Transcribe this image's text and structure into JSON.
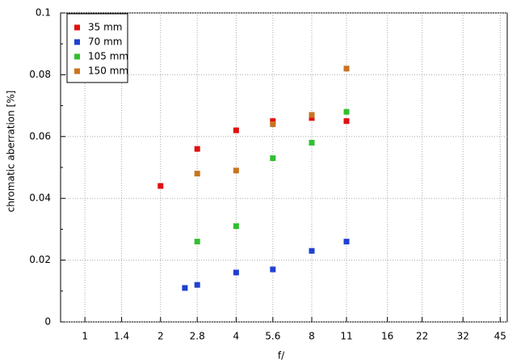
{
  "chart_data": {
    "type": "scatter",
    "x_label": "f/",
    "y_label": "chromatic aberration [%]",
    "xscale": "log",
    "grid": true,
    "legend": "upper left",
    "xlim": [
      0.8,
      48
    ],
    "ylim": [
      0,
      0.1
    ],
    "xticks": [
      1,
      1.4,
      2,
      2.8,
      4,
      5.6,
      8,
      11,
      16,
      22,
      32,
      45
    ],
    "yticks": [
      0,
      0.02,
      0.04,
      0.06,
      0.08,
      0.1
    ],
    "series": [
      {
        "name": "35 mm",
        "color": "#e01010",
        "x": [
          2,
          2.8,
          4,
          5.6,
          8,
          11
        ],
        "values": [
          0.044,
          0.056,
          0.062,
          0.065,
          0.066,
          0.065
        ]
      },
      {
        "name": "70 mm",
        "color": "#2040d0",
        "x": [
          2.5,
          2.8,
          4,
          5.6,
          8,
          11
        ],
        "values": [
          0.011,
          0.012,
          0.016,
          0.017,
          0.023,
          0.026
        ]
      },
      {
        "name": "105 mm",
        "color": "#30c030",
        "x": [
          2.8,
          4,
          5.6,
          8,
          11
        ],
        "values": [
          0.026,
          0.031,
          0.053,
          0.058,
          0.068
        ]
      },
      {
        "name": "150 mm",
        "color": "#c87420",
        "x": [
          2.8,
          4,
          5.6,
          8,
          11
        ],
        "values": [
          0.048,
          0.049,
          0.064,
          0.067,
          0.082
        ]
      }
    ]
  }
}
